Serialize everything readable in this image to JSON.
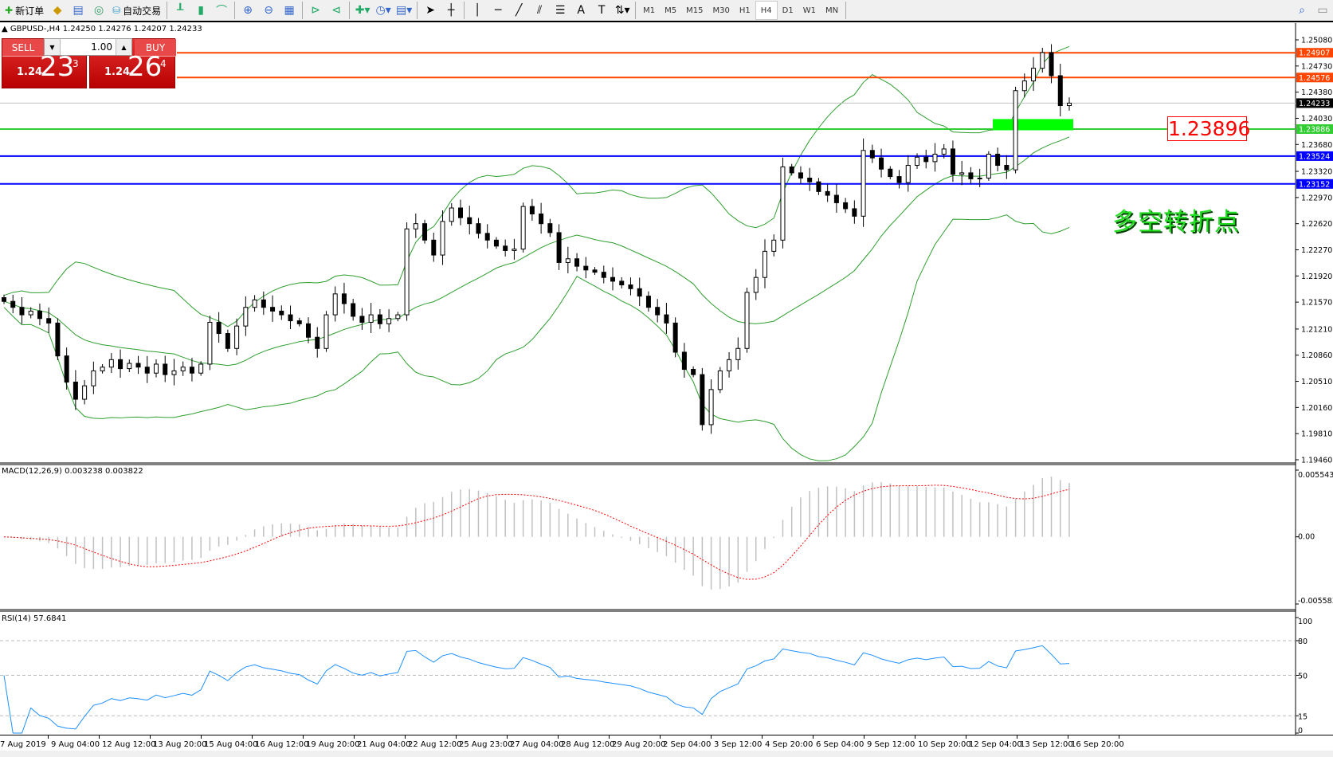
{
  "toolbar": {
    "new_order": "新订单",
    "auto_trading": "自动交易",
    "icons": [
      "new-order-icon",
      "market-watch-icon",
      "navigator-icon",
      "signals-icon",
      "auto-trading-icon",
      "bar-chart-icon",
      "candlestick-icon",
      "line-chart-icon",
      "zoom-in-icon",
      "zoom-out-icon",
      "tile-windows-icon",
      "auto-scroll-icon",
      "chart-shift-icon",
      "indicators-icon",
      "periods-icon",
      "templates-icon",
      "cursor-icon",
      "crosshair-icon",
      "vertical-line-icon",
      "horizontal-line-icon",
      "trendline-icon",
      "equidistant-channel-icon",
      "fibonacci-icon",
      "text-icon",
      "text-label-icon",
      "arrows-icon"
    ],
    "timeframes": [
      "M1",
      "M5",
      "M15",
      "M30",
      "H1",
      "H4",
      "D1",
      "W1",
      "MN"
    ],
    "active_timeframe": "H4"
  },
  "chart": {
    "header": "GBPUSD-,H4  1.24250 1.24276 1.24207 1.24233",
    "sell": {
      "label": "SELL",
      "big": "1.24",
      "main": "23",
      "sup": "3"
    },
    "buy": {
      "label": "BUY",
      "big": "1.24",
      "main": "26",
      "sup": "4"
    },
    "lot": "1.00",
    "annotation_price": "1.23896",
    "annotation_text": "多空转折点",
    "macd_label": "MACD(12,26,9) 0.003238 0.003822",
    "rsi_label": "RSI(14) 57.6841"
  },
  "chart_data": {
    "type": "candlestick",
    "symbol": "GBPUSD-",
    "timeframe": "H4",
    "ylim": [
      1.1946,
      1.2508
    ],
    "price_ticks": [
      "1.25080",
      "1.24730",
      "1.24380",
      "1.24030",
      "1.23680",
      "1.23320",
      "1.22970",
      "1.22620",
      "1.22270",
      "1.21920",
      "1.21570",
      "1.21210",
      "1.20860",
      "1.20510",
      "1.20160",
      "1.19810",
      "1.19460"
    ],
    "time_ticks": [
      "7 Aug 2019",
      "9 Aug 04:00",
      "12 Aug 12:00",
      "13 Aug 20:00",
      "15 Aug 04:00",
      "16 Aug 12:00",
      "19 Aug 20:00",
      "21 Aug 04:00",
      "22 Aug 12:00",
      "25 Aug 23:00",
      "27 Aug 04:00",
      "28 Aug 12:00",
      "29 Aug 20:00",
      "2 Sep 04:00",
      "3 Sep 12:00",
      "4 Sep 20:00",
      "6 Sep 04:00",
      "9 Sep 12:00",
      "10 Sep 20:00",
      "12 Sep 04:00",
      "13 Sep 12:00",
      "16 Sep 20:00"
    ],
    "closes": [
      1.2158,
      1.215,
      1.214,
      1.2145,
      1.2135,
      1.2129,
      1.2085,
      1.205,
      1.2027,
      1.2045,
      1.2065,
      1.207,
      1.208,
      1.2068,
      1.2075,
      1.207,
      1.2062,
      1.2074,
      1.206,
      1.2065,
      1.207,
      1.2062,
      1.2074,
      1.213,
      1.2115,
      1.2095,
      1.2125,
      1.215,
      1.216,
      1.215,
      1.2145,
      1.214,
      1.2132,
      1.2128,
      1.211,
      1.2095,
      1.214,
      1.2168,
      1.2155,
      1.2138,
      1.213,
      1.214,
      1.2128,
      1.2135,
      1.214,
      1.2255,
      1.2262,
      1.224,
      1.222,
      1.2265,
      1.2283,
      1.227,
      1.2262,
      1.2249,
      1.224,
      1.2232,
      1.2226,
      1.2228,
      1.2285,
      1.2275,
      1.2262,
      1.225,
      1.221,
      1.2215,
      1.2205,
      1.22,
      1.2197,
      1.219,
      1.2185,
      1.218,
      1.2175,
      1.2165,
      1.215,
      1.214,
      1.2129,
      1.209,
      1.2067,
      1.206,
      1.1993,
      1.204,
      1.2065,
      1.208,
      1.2095,
      1.217,
      1.219,
      1.2225,
      1.224,
      1.2338,
      1.233,
      1.2323,
      1.2318,
      1.2305,
      1.23,
      1.229,
      1.2282,
      1.2272,
      1.236,
      1.235,
      1.2335,
      1.2325,
      1.2317,
      1.234,
      1.2351,
      1.2345,
      1.2355,
      1.2362,
      1.2328,
      1.233,
      1.2322,
      1.2323,
      1.2355,
      1.234,
      1.2334,
      1.244,
      1.2453,
      1.247,
      1.2491,
      1.246,
      1.242,
      1.24233
    ],
    "indicators": [
      "Bollinger Bands",
      "MACD(12,26,9)",
      "RSI(14)"
    ],
    "horizontal_lines": [
      {
        "price": "1.24907",
        "color": "#ff4500"
      },
      {
        "price": "1.24576",
        "color": "#ff4500"
      },
      {
        "price": "1.24233",
        "color": "#c0c0c0",
        "label_bg": "#000000"
      },
      {
        "price": "1.23886",
        "color": "#32cd32"
      },
      {
        "price": "1.23524",
        "color": "#0000ff"
      },
      {
        "price": "1.23152",
        "color": "#0000ff"
      }
    ],
    "zone": {
      "price_from": 1.2387,
      "price_to": 1.2402,
      "color": "#00ff00"
    },
    "macd_ticks": [
      "0.005543",
      "0.00",
      "-0.005583"
    ],
    "macd_range": [
      -0.005583,
      0.005543
    ],
    "rsi_ticks": [
      "100",
      "80",
      "50",
      "15",
      "0"
    ],
    "colors": {
      "bands": "#2e9e2e",
      "signal": "#ff0000",
      "histogram": "#c0c0c0",
      "rsi": "#1e90ff"
    }
  }
}
